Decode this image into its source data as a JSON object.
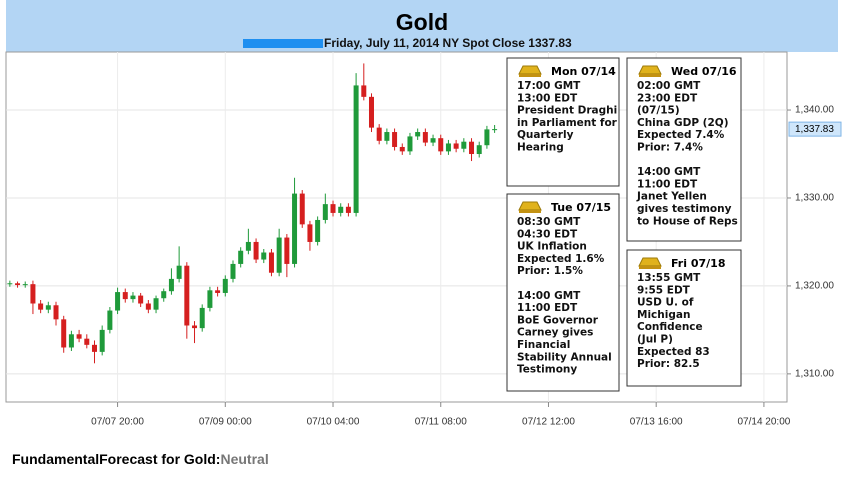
{
  "chart_data": {
    "type": "candlestick",
    "title": "Gold",
    "subtitle": "Friday, July 11, 2014 NY Spot Close 1337.83",
    "x": [
      "07/06 16:00",
      "07/06 18:00",
      "07/06 20:00",
      "07/06 22:00",
      "07/07 00:00",
      "07/07 02:00",
      "07/07 04:00",
      "07/07 06:00",
      "07/07 08:00",
      "07/07 10:00",
      "07/07 12:00",
      "07/07 14:00",
      "07/07 16:00",
      "07/07 18:00",
      "07/07 20:00",
      "07/07 22:00",
      "07/08 00:00",
      "07/08 02:00",
      "07/08 04:00",
      "07/08 06:00",
      "07/08 08:00",
      "07/08 10:00",
      "07/08 12:00",
      "07/08 14:00",
      "07/08 16:00",
      "07/08 18:00",
      "07/08 20:00",
      "07/08 22:00",
      "07/09 00:00",
      "07/09 02:00",
      "07/09 04:00",
      "07/09 06:00",
      "07/09 08:00",
      "07/09 10:00",
      "07/09 12:00",
      "07/09 14:00",
      "07/09 16:00",
      "07/09 18:00",
      "07/09 20:00",
      "07/09 22:00",
      "07/10 00:00",
      "07/10 02:00",
      "07/10 04:00",
      "07/10 06:00",
      "07/10 08:00",
      "07/10 10:00",
      "07/10 12:00",
      "07/10 14:00",
      "07/10 16:00",
      "07/10 18:00",
      "07/10 20:00",
      "07/10 22:00",
      "07/11 00:00",
      "07/11 02:00",
      "07/11 04:00",
      "07/11 06:00",
      "07/11 08:00",
      "07/11 10:00",
      "07/11 12:00",
      "07/11 14:00",
      "07/11 16:00",
      "07/11 18:00",
      "07/11 20:00",
      "07/11 22:00"
    ],
    "open": [
      1320.3,
      1320.3,
      1320.1,
      1320.2,
      1318.0,
      1317.3,
      1317.8,
      1316.2,
      1313.0,
      1314.5,
      1314.0,
      1313.3,
      1312.5,
      1315.0,
      1317.2,
      1319.3,
      1318.5,
      1318.9,
      1318.0,
      1317.3,
      1318.6,
      1319.4,
      1320.8,
      1322.3,
      1315.5,
      1315.2,
      1317.5,
      1319.5,
      1319.2,
      1320.8,
      1322.5,
      1324.0,
      1325.0,
      1323.0,
      1323.8,
      1321.5,
      1325.5,
      1322.5,
      1330.5,
      1327.0,
      1325.0,
      1327.5,
      1329.3,
      1328.3,
      1329.0,
      1328.3,
      1342.8,
      1341.5,
      1338.0,
      1336.5,
      1337.5,
      1335.8,
      1335.3,
      1337.0,
      1337.5,
      1336.3,
      1336.8,
      1335.3,
      1336.2,
      1335.6,
      1336.4,
      1335.0,
      1336.0,
      1337.8
    ],
    "high": [
      1320.6,
      1320.5,
      1320.5,
      1320.6,
      1318.4,
      1318.2,
      1318.2,
      1316.6,
      1314.9,
      1315.0,
      1314.5,
      1313.8,
      1315.5,
      1317.6,
      1319.8,
      1319.7,
      1319.3,
      1319.2,
      1318.4,
      1318.9,
      1319.7,
      1322.0,
      1324.5,
      1322.7,
      1316.0,
      1317.9,
      1319.9,
      1319.9,
      1321.2,
      1322.9,
      1324.4,
      1326.5,
      1325.4,
      1324.2,
      1324.2,
      1326.5,
      1325.9,
      1332.3,
      1330.9,
      1327.4,
      1327.9,
      1330.5,
      1329.7,
      1329.4,
      1329.4,
      1344.2,
      1345.3,
      1341.9,
      1338.4,
      1337.9,
      1337.9,
      1336.2,
      1337.4,
      1337.9,
      1337.9,
      1337.2,
      1337.2,
      1336.6,
      1336.6,
      1336.8,
      1336.8,
      1336.4,
      1338.2,
      1338.3
    ],
    "low": [
      1319.9,
      1319.8,
      1319.8,
      1316.8,
      1316.9,
      1316.9,
      1315.5,
      1312.4,
      1312.6,
      1313.6,
      1312.9,
      1311.2,
      1312.1,
      1314.6,
      1316.8,
      1318.1,
      1318.1,
      1317.6,
      1316.9,
      1316.9,
      1318.2,
      1319.0,
      1320.4,
      1314.0,
      1313.5,
      1314.8,
      1317.1,
      1318.8,
      1318.8,
      1320.4,
      1322.1,
      1323.6,
      1322.6,
      1322.6,
      1321.1,
      1321.1,
      1321.0,
      1322.1,
      1326.6,
      1324.0,
      1324.6,
      1327.1,
      1327.9,
      1327.9,
      1327.9,
      1327.9,
      1341.1,
      1337.5,
      1336.1,
      1336.1,
      1335.4,
      1334.9,
      1334.9,
      1336.6,
      1335.9,
      1335.9,
      1334.9,
      1334.9,
      1335.2,
      1335.2,
      1334.2,
      1334.6,
      1335.6,
      1337.4
    ],
    "close": [
      1320.3,
      1320.1,
      1320.2,
      1318.0,
      1317.3,
      1317.8,
      1316.2,
      1313.0,
      1314.5,
      1314.0,
      1313.3,
      1312.5,
      1315.0,
      1317.2,
      1319.3,
      1318.5,
      1318.9,
      1318.0,
      1317.3,
      1318.6,
      1319.4,
      1320.8,
      1322.3,
      1315.5,
      1315.2,
      1317.5,
      1319.5,
      1319.2,
      1320.8,
      1322.5,
      1324.0,
      1325.0,
      1323.0,
      1323.8,
      1321.5,
      1325.5,
      1322.5,
      1330.5,
      1327.0,
      1325.0,
      1327.5,
      1329.3,
      1328.3,
      1329.0,
      1328.3,
      1342.8,
      1341.5,
      1338.0,
      1336.5,
      1337.5,
      1335.8,
      1335.3,
      1337.0,
      1337.5,
      1336.3,
      1336.8,
      1335.3,
      1336.2,
      1335.6,
      1336.4,
      1335.0,
      1336.0,
      1337.8,
      1337.83
    ],
    "up_color": "#1f9a3a",
    "down_color": "#d51f1f",
    "xlim": [
      "07/06 15:00",
      "07/15 02:00"
    ],
    "xticks": [
      "07/07 20:00",
      "07/09 00:00",
      "07/10 04:00",
      "07/11 08:00",
      "07/12 12:00",
      "07/13 16:00",
      "07/14 20:00"
    ],
    "ylim": [
      1306.8,
      1346.6
    ],
    "yticks": [
      {
        "value": 1310,
        "label": "1,310.00"
      },
      {
        "value": 1320,
        "label": "1,320.00"
      },
      {
        "value": 1330,
        "label": "1,330.00"
      },
      {
        "value": 1340,
        "label": "1,340.00"
      }
    ],
    "grid": true,
    "last_price": {
      "value": 1337.83,
      "label": "1,337.83"
    },
    "annotations": [
      {
        "date": "Mon 07/14",
        "blocks": [
          [
            "17:00 GMT",
            "13:00 EDT",
            "President Draghi",
            "in Parliament for",
            "Quarterly",
            "Hearing"
          ]
        ]
      },
      {
        "date": "Wed 07/16",
        "blocks": [
          [
            "02:00 GMT",
            "23:00 EDT",
            "(07/15)",
            "China GDP (2Q)",
            "Expected 7.4%",
            "Prior: 7.4%"
          ],
          [
            "14:00 GMT",
            "11:00 EDT",
            "Janet Yellen",
            "gives testimony",
            "to House of Reps"
          ]
        ]
      },
      {
        "date": "Tue 07/15",
        "blocks": [
          [
            "08:30 GMT",
            "04:30 EDT",
            "UK Inflation",
            "Expected 1.6%",
            "Prior: 1.5%"
          ],
          [
            "14:00 GMT",
            "11:00 EDT",
            "BoE Governor",
            "Carney gives",
            "Financial",
            "Stability Annual",
            "Testimony"
          ]
        ]
      },
      {
        "date": "Fri 07/18",
        "blocks": [
          [
            "13:55 GMT",
            "9:55 EDT",
            "USD U. of",
            "Michigan",
            "Confidence",
            "(Jul P)",
            "Expected  83",
            "Prior: 82.5"
          ]
        ]
      }
    ]
  },
  "footer": {
    "label": "FundamentalForecast for Gold:",
    "value": "Neutral"
  }
}
